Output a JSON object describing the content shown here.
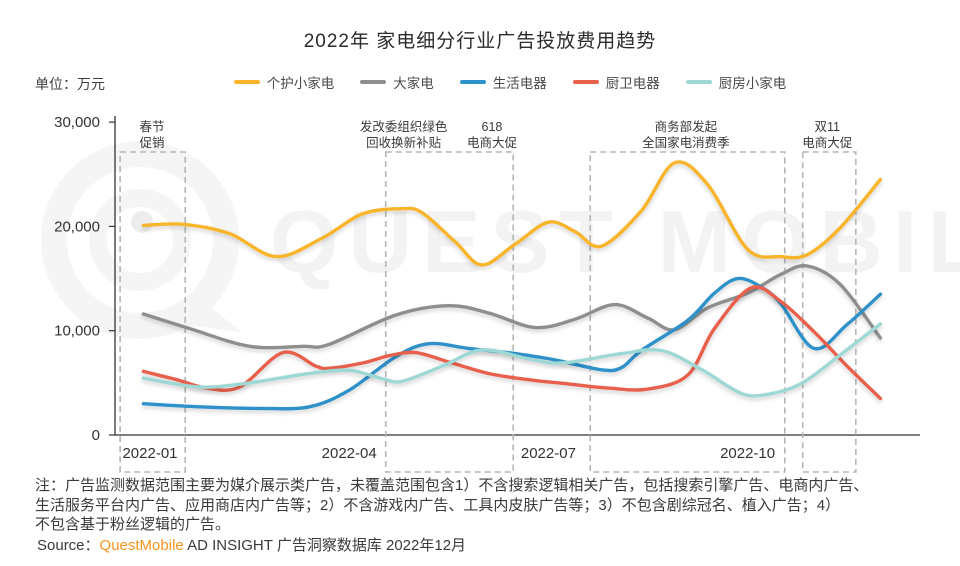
{
  "header": {
    "title": "2022年 家电细分行业广告投放费用趋势",
    "unit_label": "单位：万元"
  },
  "legend": {
    "items": [
      {
        "label": "个护小家电",
        "color": "#F8B42C"
      },
      {
        "label": "大家电",
        "color": "#8E8E8E"
      },
      {
        "label": "生活电器",
        "color": "#2E91C9"
      },
      {
        "label": "厨卫电器",
        "color": "#E8614B"
      },
      {
        "label": "厨房小家电",
        "color": "#9ED8D5"
      }
    ]
  },
  "watermark": {
    "text": "QUEST MOBILE"
  },
  "chart_data": {
    "type": "line",
    "title": "2022年 家电细分行业广告投放费用趋势",
    "unit": "万元",
    "x_axis": {
      "ticks": [
        {
          "month": 1,
          "label": "2022-01"
        },
        {
          "month": 4,
          "label": "2022-04"
        },
        {
          "month": 7,
          "label": "2022-07"
        },
        {
          "month": 10,
          "label": "2022-10"
        }
      ],
      "range_months": [
        1,
        12
      ]
    },
    "y_axis": {
      "ticks": [
        {
          "value": 0,
          "label": "0"
        },
        {
          "value": 10000,
          "label": "10,000"
        },
        {
          "value": 20000,
          "label": "20,000"
        },
        {
          "value": 30000,
          "label": "30,000"
        }
      ],
      "range": [
        0,
        30000
      ],
      "grid": false
    },
    "legend_position": "top",
    "annotations": [
      {
        "line1": "春节",
        "line2": "促销",
        "month": 1.03
      },
      {
        "line1": "发改委组织绿色",
        "line2": "回收换新补贴",
        "month": 4.82
      },
      {
        "line1": "618",
        "line2": "电商大促",
        "month": 6.15
      },
      {
        "line1": "商务部发起",
        "line2": "全国家电消费季",
        "month": 9.07
      },
      {
        "line1": "双11",
        "line2": "电商大促",
        "month": 11.2
      }
    ],
    "event_boxes": [
      {
        "from_month": 0.55,
        "to_month": 1.53
      },
      {
        "from_month": 4.55,
        "to_month": 6.47
      },
      {
        "from_month": 7.63,
        "to_month": 10.56
      },
      {
        "from_month": 10.83,
        "to_month": 11.63
      }
    ],
    "series": [
      {
        "name": "个护小家电",
        "color": "#F8B42C",
        "points": [
          [
            0.9,
            20100
          ],
          [
            1.5,
            20200
          ],
          [
            2.2,
            19300
          ],
          [
            2.9,
            17100
          ],
          [
            3.6,
            18900
          ],
          [
            4.2,
            21200
          ],
          [
            4.8,
            21700
          ],
          [
            5.1,
            21300
          ],
          [
            5.6,
            18500
          ],
          [
            6.0,
            16300
          ],
          [
            6.5,
            18300
          ],
          [
            7.0,
            20400
          ],
          [
            7.4,
            19500
          ],
          [
            7.8,
            18100
          ],
          [
            8.4,
            21500
          ],
          [
            8.9,
            26100
          ],
          [
            9.4,
            24000
          ],
          [
            10.0,
            17800
          ],
          [
            10.5,
            17100
          ],
          [
            10.9,
            17300
          ],
          [
            11.4,
            19900
          ],
          [
            12.0,
            24500
          ]
        ]
      },
      {
        "name": "大家电",
        "color": "#8E8E8E",
        "points": [
          [
            0.9,
            11600
          ],
          [
            1.6,
            10200
          ],
          [
            2.5,
            8500
          ],
          [
            3.3,
            8500
          ],
          [
            3.7,
            8700
          ],
          [
            4.7,
            11500
          ],
          [
            5.5,
            12400
          ],
          [
            6.1,
            11700
          ],
          [
            6.8,
            10300
          ],
          [
            7.4,
            11100
          ],
          [
            8.0,
            12500
          ],
          [
            8.5,
            11200
          ],
          [
            8.9,
            10100
          ],
          [
            9.4,
            12200
          ],
          [
            10.0,
            13600
          ],
          [
            10.5,
            15400
          ],
          [
            10.9,
            16200
          ],
          [
            11.4,
            14400
          ],
          [
            12.0,
            9300
          ]
        ]
      },
      {
        "name": "生活电器",
        "color": "#2E91C9",
        "points": [
          [
            0.9,
            3000
          ],
          [
            1.75,
            2700
          ],
          [
            2.65,
            2550
          ],
          [
            3.4,
            2700
          ],
          [
            4.0,
            4300
          ],
          [
            4.7,
            7500
          ],
          [
            5.2,
            8750
          ],
          [
            5.8,
            8300
          ],
          [
            6.5,
            7800
          ],
          [
            7.1,
            7200
          ],
          [
            7.8,
            6250
          ],
          [
            8.1,
            6450
          ],
          [
            8.4,
            8100
          ],
          [
            9.1,
            11000
          ],
          [
            9.5,
            13600
          ],
          [
            9.85,
            15000
          ],
          [
            10.2,
            14200
          ],
          [
            10.5,
            12600
          ],
          [
            11.0,
            8300
          ],
          [
            11.5,
            10600
          ],
          [
            12.0,
            13500
          ]
        ]
      },
      {
        "name": "厨卫电器",
        "color": "#E8614B",
        "points": [
          [
            0.9,
            6100
          ],
          [
            1.4,
            5300
          ],
          [
            1.85,
            4500
          ],
          [
            2.35,
            4600
          ],
          [
            3.0,
            7900
          ],
          [
            3.5,
            6600
          ],
          [
            3.7,
            6400
          ],
          [
            4.2,
            6900
          ],
          [
            4.6,
            7600
          ],
          [
            5.0,
            7900
          ],
          [
            5.5,
            7000
          ],
          [
            6.1,
            5900
          ],
          [
            6.7,
            5300
          ],
          [
            7.3,
            4900
          ],
          [
            7.9,
            4500
          ],
          [
            8.5,
            4400
          ],
          [
            9.1,
            5750
          ],
          [
            9.5,
            10200
          ],
          [
            10.05,
            14100
          ],
          [
            10.5,
            12800
          ],
          [
            11.0,
            9900
          ],
          [
            11.5,
            6600
          ],
          [
            12.0,
            3500
          ]
        ]
      },
      {
        "name": "厨房小家电",
        "color": "#9ED8D5",
        "points": [
          [
            0.9,
            5450
          ],
          [
            1.75,
            4600
          ],
          [
            2.5,
            5000
          ],
          [
            3.4,
            5900
          ],
          [
            4.0,
            6200
          ],
          [
            4.5,
            5400
          ],
          [
            4.8,
            5150
          ],
          [
            5.4,
            6600
          ],
          [
            6.0,
            8150
          ],
          [
            6.7,
            7300
          ],
          [
            7.2,
            6900
          ],
          [
            8.1,
            7800
          ],
          [
            8.7,
            8100
          ],
          [
            9.3,
            6300
          ],
          [
            9.9,
            4000
          ],
          [
            10.3,
            3900
          ],
          [
            10.8,
            4900
          ],
          [
            11.4,
            7700
          ],
          [
            12.0,
            10650
          ]
        ]
      }
    ]
  },
  "notes": {
    "line1": "注：广告监测数据范围主要为媒介展示类广告，未覆盖范围包含1）不含搜索逻辑相关广告，包括搜索引擎广告、电商内广告、",
    "line2": "生活服务平台内广告、应用商店内广告等；2）不含游戏内广告、工具内皮肤广告等；3）不包含剧综冠名、植入广告；4）",
    "line3": "不包含基于粉丝逻辑的广告。"
  },
  "source": {
    "prefix": "Source：",
    "brand": "QuestMobile",
    "suffix": " AD INSIGHT 广告洞察数据库 2022年12月"
  }
}
